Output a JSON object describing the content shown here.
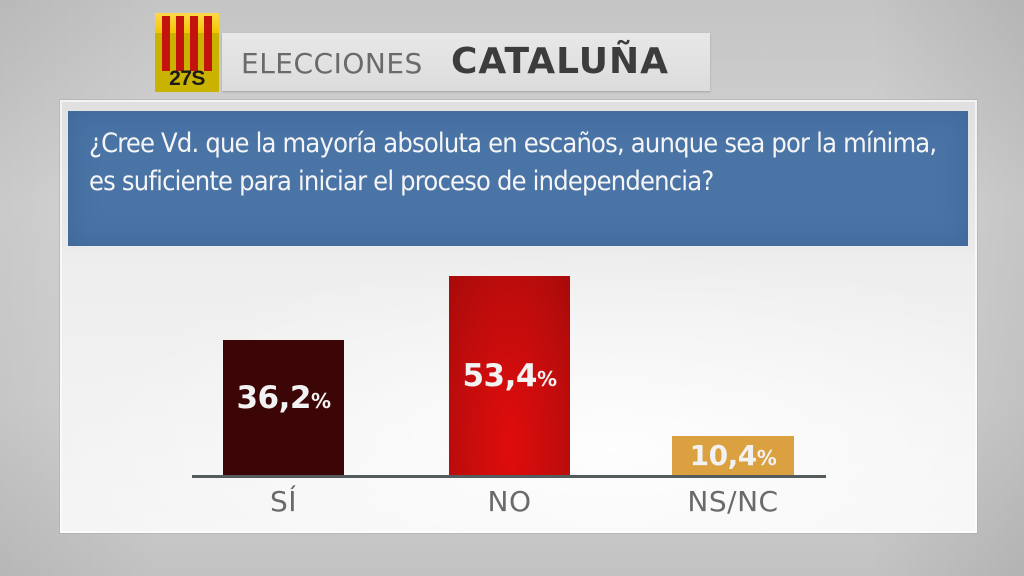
{
  "header": {
    "logo_label": "27S",
    "title_light": "ELECCIONES",
    "title_bold": "CATALUÑA"
  },
  "question": "¿Cree Vd. que la mayoría absoluta en escaños, aunque sea por la mínima, es suficiente para iniciar el proceso de independencia?",
  "bars": [
    {
      "label": "SÍ",
      "value_text": "36,2",
      "pct": "%",
      "color": "#3d0606"
    },
    {
      "label": "NO",
      "value_text": "53,4",
      "pct": "%",
      "color": "#c10c0c"
    },
    {
      "label": "NS/NC",
      "value_text": "10,4",
      "pct": "%",
      "color": "#dba040"
    }
  ],
  "chart_data": {
    "type": "bar",
    "title": "¿Cree Vd. que la mayoría absoluta en escaños, aunque sea por la mínima, es suficiente para iniciar el proceso de independencia?",
    "categories": [
      "SÍ",
      "NO",
      "NS/NC"
    ],
    "values": [
      36.2,
      53.4,
      10.4
    ],
    "unit": "%",
    "colors": [
      "#3d0606",
      "#c10c0c",
      "#dba040"
    ],
    "xlabel": "",
    "ylabel": "",
    "grid": false,
    "legend": false
  }
}
